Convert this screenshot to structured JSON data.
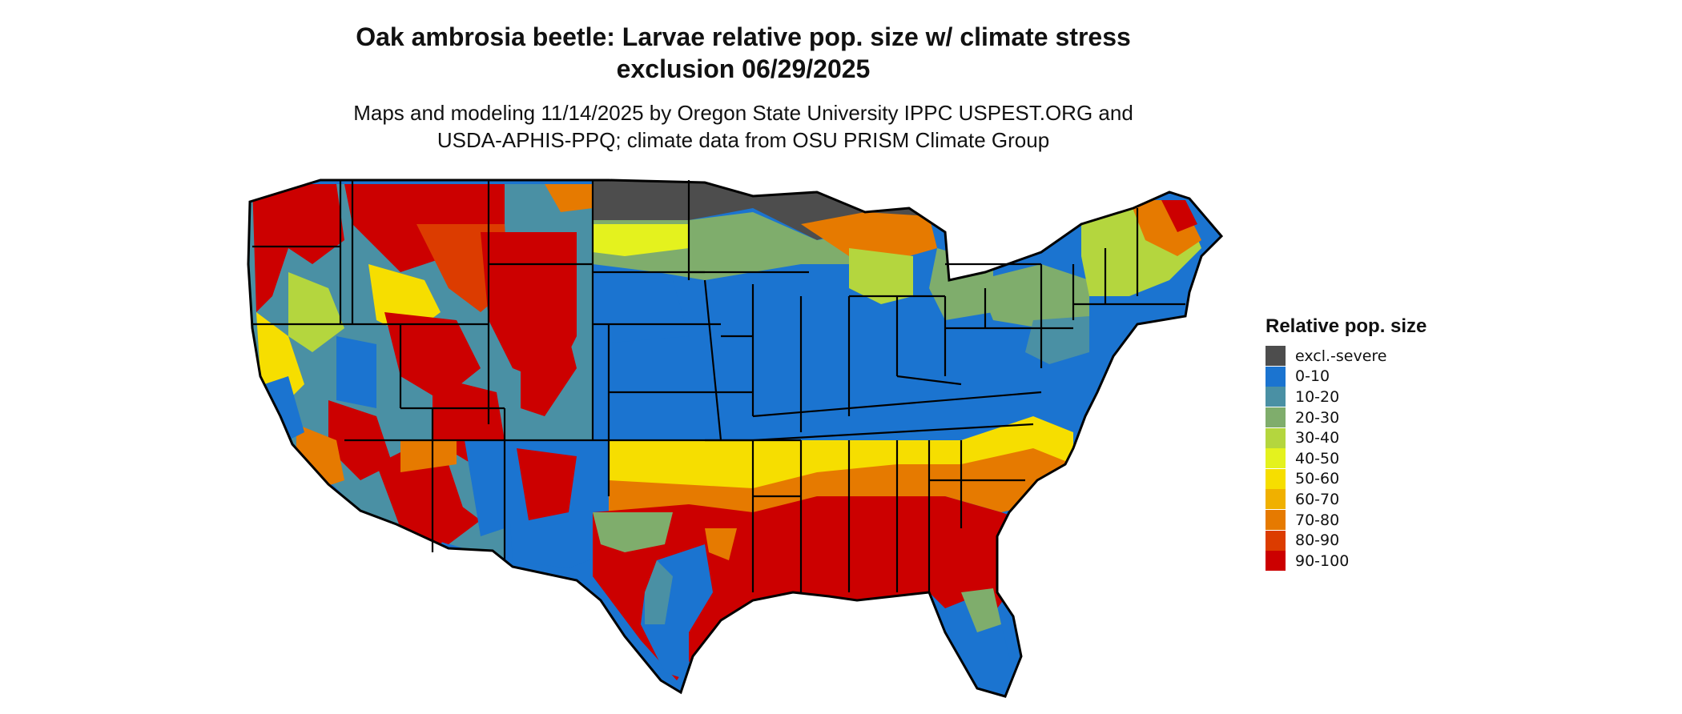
{
  "title_line1": "Oak ambrosia beetle: Larvae relative pop. size w/ climate stress",
  "title_line2": "exclusion 06/29/2025",
  "subtitle_line1": "Maps and modeling 11/14/2025 by Oregon State University IPPC USPEST.ORG and",
  "subtitle_line2": "USDA-APHIS-PPQ; climate data from OSU PRISM Climate Group",
  "legend": {
    "title": "Relative pop. size",
    "items": [
      {
        "label": "excl.-severe",
        "color": "#4d4d4d"
      },
      {
        "label": "0-10",
        "color": "#1b74d0"
      },
      {
        "label": "10-20",
        "color": "#4a90a4"
      },
      {
        "label": "20-30",
        "color": "#7fad6c"
      },
      {
        "label": "30-40",
        "color": "#b4d63e"
      },
      {
        "label": "40-50",
        "color": "#e4f21e"
      },
      {
        "label": "50-60",
        "color": "#f6de00"
      },
      {
        "label": "60-70",
        "color": "#f0b000"
      },
      {
        "label": "70-80",
        "color": "#e67a00"
      },
      {
        "label": "80-90",
        "color": "#dc3c00"
      },
      {
        "label": "90-100",
        "color": "#cc0000"
      }
    ]
  }
}
